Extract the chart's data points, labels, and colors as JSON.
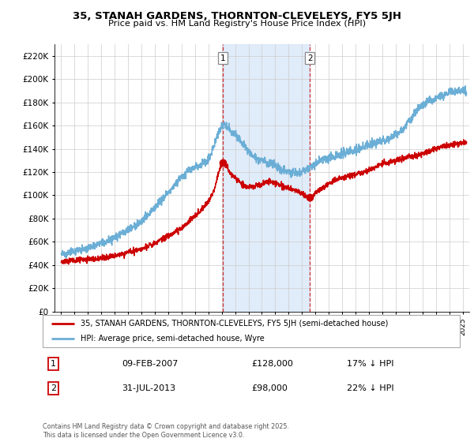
{
  "title": "35, STANAH GARDENS, THORNTON-CLEVELEYS, FY5 5JH",
  "subtitle": "Price paid vs. HM Land Registry's House Price Index (HPI)",
  "legend_line1": "35, STANAH GARDENS, THORNTON-CLEVELEYS, FY5 5JH (semi-detached house)",
  "legend_line2": "HPI: Average price, semi-detached house, Wyre",
  "annotation1_label": "1",
  "annotation1_date": "09-FEB-2007",
  "annotation1_price": "£128,000",
  "annotation1_hpi": "17% ↓ HPI",
  "annotation2_label": "2",
  "annotation2_date": "31-JUL-2013",
  "annotation2_price": "£98,000",
  "annotation2_hpi": "22% ↓ HPI",
  "footnote": "Contains HM Land Registry data © Crown copyright and database right 2025.\nThis data is licensed under the Open Government Licence v3.0.",
  "hpi_color": "#6baed6",
  "price_color": "#cc0000",
  "sale1_x": 2007.1,
  "sale1_y": 128000,
  "sale2_x": 2013.58,
  "sale2_y": 98000,
  "ylim": [
    0,
    230000
  ],
  "xlim": [
    1994.5,
    2025.5
  ],
  "shade_x1": 2007.1,
  "shade_x2": 2013.58,
  "hpi_key_years": [
    1995,
    1996,
    1997,
    1998,
    1999,
    2000,
    2001,
    2002,
    2003,
    2004,
    2005,
    2006,
    2006.5,
    2007,
    2007.5,
    2008,
    2008.5,
    2009,
    2009.5,
    2010,
    2010.5,
    2011,
    2011.5,
    2012,
    2012.5,
    2013,
    2013.5,
    2014,
    2015,
    2016,
    2017,
    2018,
    2019,
    2020,
    2021,
    2022,
    2023,
    2024,
    2025
  ],
  "hpi_key_vals": [
    50000,
    52000,
    55000,
    59000,
    64000,
    70000,
    78000,
    90000,
    103000,
    116000,
    124000,
    132000,
    145000,
    160000,
    158000,
    152000,
    145000,
    138000,
    132000,
    130000,
    128000,
    126000,
    122000,
    120000,
    119000,
    121000,
    123000,
    127000,
    132000,
    136000,
    139000,
    143000,
    147000,
    152000,
    164000,
    178000,
    183000,
    188000,
    190000
  ],
  "price_key_years": [
    1995,
    1996,
    1997,
    1998,
    1999,
    2000,
    2001,
    2002,
    2003,
    2004,
    2004.5,
    2005,
    2005.5,
    2006,
    2006.5,
    2007.1,
    2007.6,
    2008,
    2008.5,
    2009,
    2009.5,
    2010,
    2010.5,
    2011,
    2011.5,
    2012,
    2012.5,
    2013,
    2013.58,
    2014,
    2014.5,
    2015,
    2016,
    2017,
    2018,
    2019,
    2020,
    2021,
    2022,
    2023,
    2024,
    2025
  ],
  "price_key_vals": [
    43000,
    44000,
    45000,
    46000,
    48000,
    51000,
    54000,
    59000,
    65000,
    72000,
    77000,
    82000,
    88000,
    95000,
    108000,
    128000,
    120000,
    115000,
    110000,
    107000,
    108000,
    110000,
    112000,
    110000,
    108000,
    106000,
    104000,
    101000,
    98000,
    102000,
    106000,
    110000,
    115000,
    118000,
    122000,
    127000,
    130000,
    133000,
    136000,
    140000,
    143000,
    145000
  ]
}
